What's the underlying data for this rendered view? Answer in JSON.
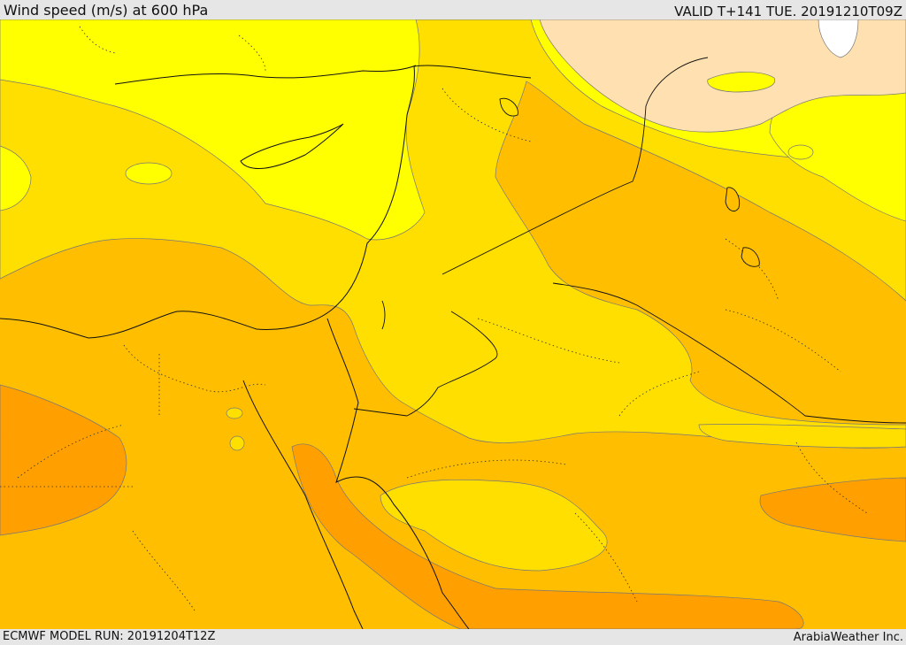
{
  "header": {
    "title": "Wind speed (m/s) at 600 hPa",
    "valid": "VALID T+141 TUE. 20191210T09Z"
  },
  "footer": {
    "model_run": "ECMWF MODEL RUN: 20191204T12Z",
    "credit": "ArabiaWeather Inc."
  },
  "colors": {
    "speed_bands": [
      "#ffe0b0",
      "#ffff00",
      "#ffdf00",
      "#ffbf00",
      "#ff9f00"
    ],
    "background": "#e6e6e6"
  }
}
